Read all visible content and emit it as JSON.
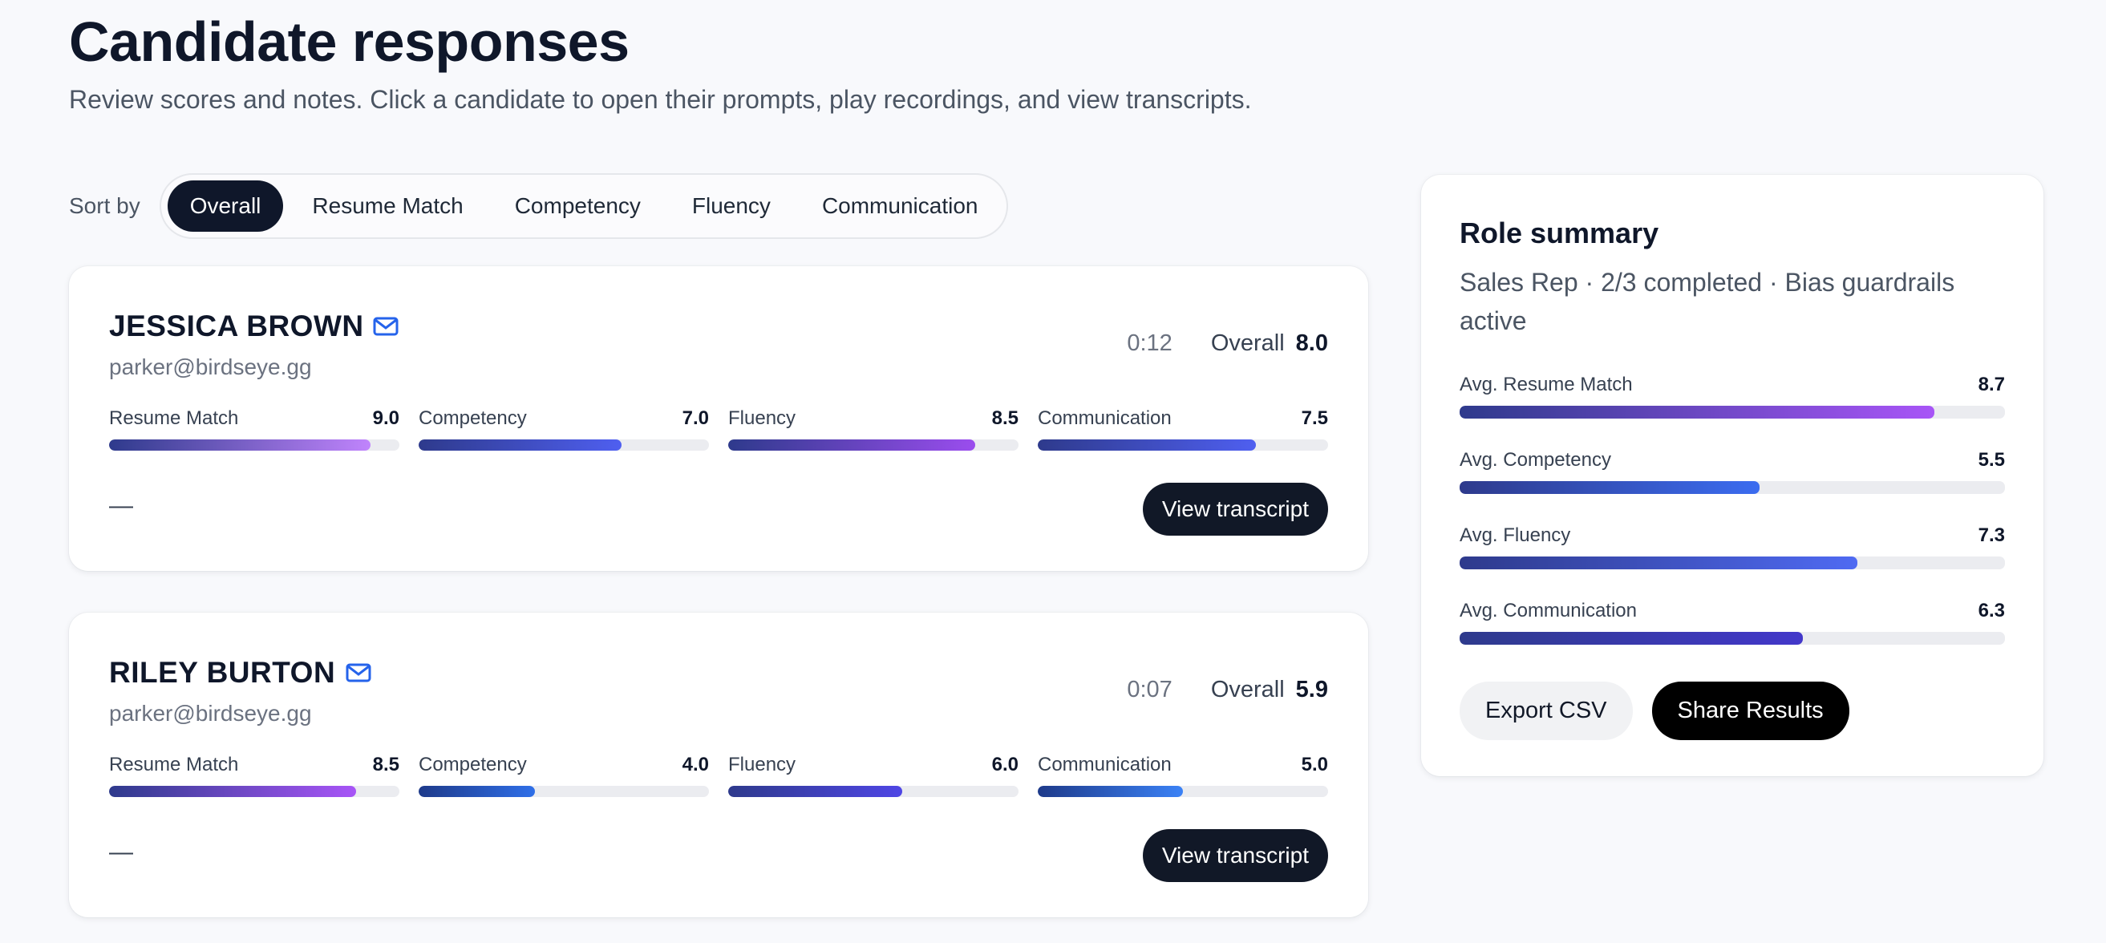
{
  "header": {
    "title": "Candidate responses",
    "subtitle": "Review scores and notes. Click a candidate to open their prompts, play recordings, and view transcripts."
  },
  "sort": {
    "label": "Sort by",
    "options": [
      "Overall",
      "Resume Match",
      "Competency",
      "Fluency",
      "Communication"
    ],
    "active": "Overall"
  },
  "candidates": [
    {
      "name": "JESSICA BROWN",
      "email": "parker@birdseye.gg",
      "duration": "0:12",
      "overall_label": "Overall",
      "overall": "8.0",
      "notes": "—",
      "action": "View transcript",
      "metrics": [
        {
          "label": "Resume Match",
          "value": "9.0",
          "fraction": 0.9
        },
        {
          "label": "Competency",
          "value": "7.0",
          "fraction": 0.7
        },
        {
          "label": "Fluency",
          "value": "8.5",
          "fraction": 0.85
        },
        {
          "label": "Communication",
          "value": "7.5",
          "fraction": 0.75
        }
      ]
    },
    {
      "name": "RILEY BURTON",
      "email": "parker@birdseye.gg",
      "duration": "0:07",
      "overall_label": "Overall",
      "overall": "5.9",
      "notes": "—",
      "action": "View transcript",
      "metrics": [
        {
          "label": "Resume Match",
          "value": "8.5",
          "fraction": 0.85
        },
        {
          "label": "Competency",
          "value": "4.0",
          "fraction": 0.4
        },
        {
          "label": "Fluency",
          "value": "6.0",
          "fraction": 0.6
        },
        {
          "label": "Communication",
          "value": "5.0",
          "fraction": 0.5
        }
      ]
    }
  ],
  "summary": {
    "title": "Role summary",
    "subtitle": "Sales Rep · 2/3 completed · Bias guardrails active",
    "averages": [
      {
        "label": "Avg. Resume Match",
        "value": "8.7",
        "fraction": 0.87
      },
      {
        "label": "Avg. Competency",
        "value": "5.5",
        "fraction": 0.55
      },
      {
        "label": "Avg. Fluency",
        "value": "7.3",
        "fraction": 0.73
      },
      {
        "label": "Avg. Communication",
        "value": "6.3",
        "fraction": 0.63
      }
    ],
    "export_label": "Export CSV",
    "share_label": "Share Results"
  },
  "icons": {
    "email": "mail-icon"
  },
  "colors": {
    "dark": "#0f172a",
    "accent_blue": "#2563eb",
    "gradients": {
      "resume": "linear-gradient(90deg,#2e3a8c,#a855f7)",
      "resume_light": "linear-gradient(90deg,#2e3a8c,#c084fc)",
      "competency": "linear-gradient(90deg,#2e3a8c,#4f5ff0)",
      "competency_blue": "linear-gradient(90deg,#1e3a8a,#2f6fe8)",
      "fluency": "linear-gradient(90deg,#2e3a8c,#9b4dee)",
      "fluency_indigo": "linear-gradient(90deg,#2e3a8c,#4f46e5)",
      "communication": "linear-gradient(90deg,#2e3a8c,#4f5ff0)",
      "communication_blue": "linear-gradient(90deg,#1e3a8a,#3b82f6)",
      "avg_resume": "linear-gradient(90deg,#2e3a8c,#a855f7)",
      "avg_competency": "linear-gradient(90deg,#2e3a8c,#3b6cf0)",
      "avg_fluency": "linear-gradient(90deg,#2e3a8c,#4f6af2)",
      "avg_communication": "linear-gradient(90deg,#2e3a8c,#4338ca)"
    }
  }
}
